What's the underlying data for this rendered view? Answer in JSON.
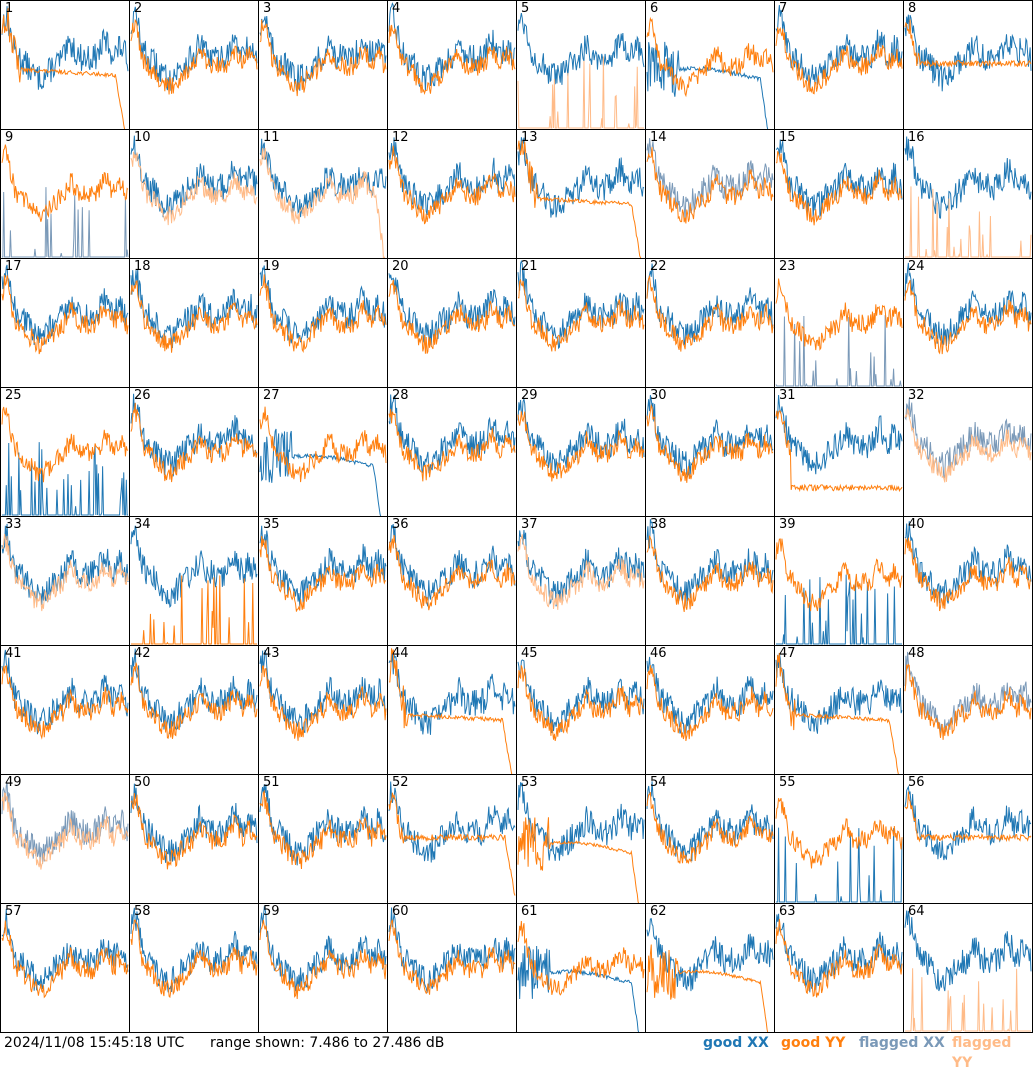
{
  "footer": {
    "timestamp": "2024/11/08 15:45:18 UTC",
    "range_text": "range shown: 7.486 to 27.486 dB"
  },
  "legend": [
    {
      "label": "good XX",
      "color": "#1f77b4"
    },
    {
      "label": "good YY",
      "color": "#ff7f0e"
    },
    {
      "label": "flagged XX",
      "color": "#7a99b8"
    },
    {
      "label": "flagged YY",
      "color": "#ffbb88"
    }
  ],
  "chart_data": {
    "type": "line",
    "grid_layout": "8x8 small multiples",
    "y_range_db": [
      7.486,
      27.486
    ],
    "tiles": [
      {
        "id": "1",
        "xx": "good",
        "yy": "good",
        "pattern": "YY decays early then drops at end"
      },
      {
        "id": "2",
        "xx": "good",
        "yy": "good",
        "pattern": "normal"
      },
      {
        "id": "3",
        "xx": "good",
        "yy": "good",
        "pattern": "normal"
      },
      {
        "id": "4",
        "xx": "good",
        "yy": "good",
        "pattern": "normal"
      },
      {
        "id": "5",
        "xx": "good",
        "yy": "flagged",
        "pattern": "YY spikes near floor"
      },
      {
        "id": "6",
        "xx": "good",
        "yy": "good",
        "pattern": "XX drops early and at end"
      },
      {
        "id": "7",
        "xx": "good",
        "yy": "good",
        "pattern": "normal"
      },
      {
        "id": "8",
        "xx": "good",
        "yy": "good",
        "pattern": "YY flat"
      },
      {
        "id": "9",
        "xx": "flagged",
        "yy": "good",
        "pattern": "XX spikes near floor"
      },
      {
        "id": "10",
        "xx": "good",
        "yy": "flagged",
        "pattern": "normal"
      },
      {
        "id": "11",
        "xx": "good",
        "yy": "flagged",
        "pattern": "YY drops at end"
      },
      {
        "id": "12",
        "xx": "good",
        "yy": "good",
        "pattern": "normal"
      },
      {
        "id": "13",
        "xx": "good",
        "yy": "good",
        "pattern": "YY decays then drops at end"
      },
      {
        "id": "14",
        "xx": "flagged",
        "yy": "good",
        "pattern": "normal"
      },
      {
        "id": "15",
        "xx": "good",
        "yy": "good",
        "pattern": "normal"
      },
      {
        "id": "16",
        "xx": "good",
        "yy": "flagged",
        "pattern": "YY spikes near floor"
      },
      {
        "id": "17",
        "xx": "good",
        "yy": "good",
        "pattern": "normal"
      },
      {
        "id": "18",
        "xx": "good",
        "yy": "good",
        "pattern": "normal"
      },
      {
        "id": "19",
        "xx": "good",
        "yy": "good",
        "pattern": "normal"
      },
      {
        "id": "20",
        "xx": "good",
        "yy": "good",
        "pattern": "normal"
      },
      {
        "id": "21",
        "xx": "good",
        "yy": "good",
        "pattern": "normal"
      },
      {
        "id": "22",
        "xx": "good",
        "yy": "good",
        "pattern": "normal"
      },
      {
        "id": "23",
        "xx": "flagged",
        "yy": "good",
        "pattern": "XX spikes near floor"
      },
      {
        "id": "24",
        "xx": "good",
        "yy": "good",
        "pattern": "normal"
      },
      {
        "id": "25",
        "xx": "good",
        "yy": "good",
        "pattern": "XX spikes near floor"
      },
      {
        "id": "26",
        "xx": "good",
        "yy": "good",
        "pattern": "normal"
      },
      {
        "id": "27",
        "xx": "good",
        "yy": "good",
        "pattern": "XX drops early and at end"
      },
      {
        "id": "28",
        "xx": "good",
        "yy": "good",
        "pattern": "normal"
      },
      {
        "id": "29",
        "xx": "good",
        "yy": "good",
        "pattern": "normal"
      },
      {
        "id": "30",
        "xx": "good",
        "yy": "good",
        "pattern": "normal"
      },
      {
        "id": "31",
        "xx": "good",
        "yy": "good",
        "pattern": "YY low and flat"
      },
      {
        "id": "32",
        "xx": "flagged",
        "yy": "flagged",
        "pattern": "noisy flagged"
      },
      {
        "id": "33",
        "xx": "good",
        "yy": "flagged",
        "pattern": "normal"
      },
      {
        "id": "34",
        "xx": "good",
        "yy": "good",
        "pattern": "YY spikes near floor"
      },
      {
        "id": "35",
        "xx": "good",
        "yy": "good",
        "pattern": "normal"
      },
      {
        "id": "36",
        "xx": "good",
        "yy": "good",
        "pattern": "normal"
      },
      {
        "id": "37",
        "xx": "good",
        "yy": "flagged",
        "pattern": "normal"
      },
      {
        "id": "38",
        "xx": "good",
        "yy": "good",
        "pattern": "normal"
      },
      {
        "id": "39",
        "xx": "good",
        "yy": "good",
        "pattern": "XX spikes near floor"
      },
      {
        "id": "40",
        "xx": "good",
        "yy": "good",
        "pattern": "normal"
      },
      {
        "id": "41",
        "xx": "good",
        "yy": "good",
        "pattern": "normal"
      },
      {
        "id": "42",
        "xx": "good",
        "yy": "good",
        "pattern": "normal"
      },
      {
        "id": "43",
        "xx": "good",
        "yy": "good",
        "pattern": "normal"
      },
      {
        "id": "44",
        "xx": "good",
        "yy": "good",
        "pattern": "YY decays then drops at end"
      },
      {
        "id": "45",
        "xx": "good",
        "yy": "good",
        "pattern": "normal"
      },
      {
        "id": "46",
        "xx": "good",
        "yy": "good",
        "pattern": "normal"
      },
      {
        "id": "47",
        "xx": "good",
        "yy": "good",
        "pattern": "YY decays then drops at end"
      },
      {
        "id": "48",
        "xx": "flagged",
        "yy": "good",
        "pattern": "normal"
      },
      {
        "id": "49",
        "xx": "flagged",
        "yy": "flagged",
        "pattern": "normal"
      },
      {
        "id": "50",
        "xx": "good",
        "yy": "good",
        "pattern": "normal"
      },
      {
        "id": "51",
        "xx": "good",
        "yy": "good",
        "pattern": "normal"
      },
      {
        "id": "52",
        "xx": "good",
        "yy": "good",
        "pattern": "YY flat then drops at end"
      },
      {
        "id": "53",
        "xx": "good",
        "yy": "good",
        "pattern": "YY drops early and at end"
      },
      {
        "id": "54",
        "xx": "good",
        "yy": "good",
        "pattern": "normal"
      },
      {
        "id": "55",
        "xx": "good",
        "yy": "good",
        "pattern": "XX spikes near floor"
      },
      {
        "id": "56",
        "xx": "good",
        "yy": "good",
        "pattern": "YY flat"
      },
      {
        "id": "57",
        "xx": "good",
        "yy": "good",
        "pattern": "normal"
      },
      {
        "id": "58",
        "xx": "good",
        "yy": "good",
        "pattern": "normal"
      },
      {
        "id": "59",
        "xx": "good",
        "yy": "good",
        "pattern": "normal"
      },
      {
        "id": "60",
        "xx": "good",
        "yy": "good",
        "pattern": "normal"
      },
      {
        "id": "61",
        "xx": "good",
        "yy": "good",
        "pattern": "XX drops early and at end"
      },
      {
        "id": "62",
        "xx": "good",
        "yy": "good",
        "pattern": "YY drops early and at end"
      },
      {
        "id": "63",
        "xx": "good",
        "yy": "good",
        "pattern": "normal"
      },
      {
        "id": "64",
        "xx": "good",
        "yy": "flagged",
        "pattern": "YY spikes near floor"
      }
    ]
  }
}
